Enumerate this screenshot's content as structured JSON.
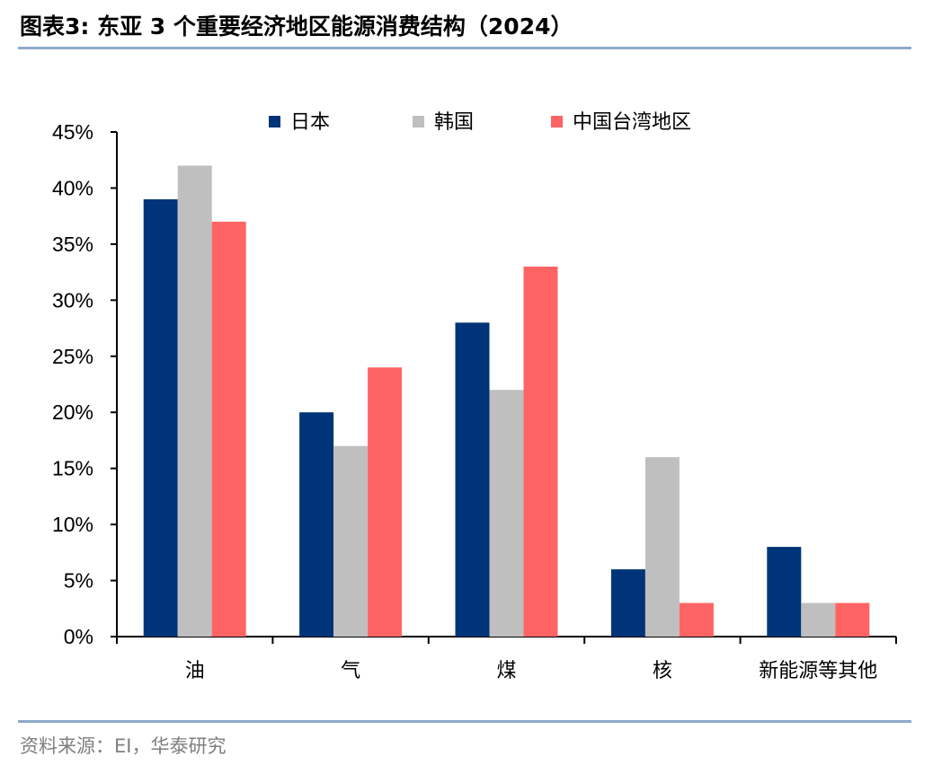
{
  "header": {
    "title": "图表3:   东亚 3 个重要经济地区能源消费结构（2024）"
  },
  "footer": {
    "source": "资料来源：EI，华泰研究"
  },
  "colors": {
    "japan": "#003478",
    "korea": "#bfbfbf",
    "taiwan": "#ff6464",
    "rule": "#8eaac9"
  },
  "chart_data": {
    "type": "bar",
    "categories": [
      "油",
      "气",
      "煤",
      "核",
      "新能源等其他"
    ],
    "series": [
      {
        "name": "日本",
        "values": [
          39,
          20,
          28,
          6,
          8
        ]
      },
      {
        "name": "韩国",
        "values": [
          42,
          17,
          22,
          16,
          3
        ]
      },
      {
        "name": "中国台湾地区",
        "values": [
          37,
          24,
          33,
          3,
          3
        ]
      }
    ],
    "y_ticks": [
      "0%",
      "5%",
      "10%",
      "15%",
      "20%",
      "25%",
      "30%",
      "35%",
      "40%",
      "45%"
    ],
    "ylim": [
      0,
      45
    ],
    "grid": false,
    "legend_position": "top"
  }
}
